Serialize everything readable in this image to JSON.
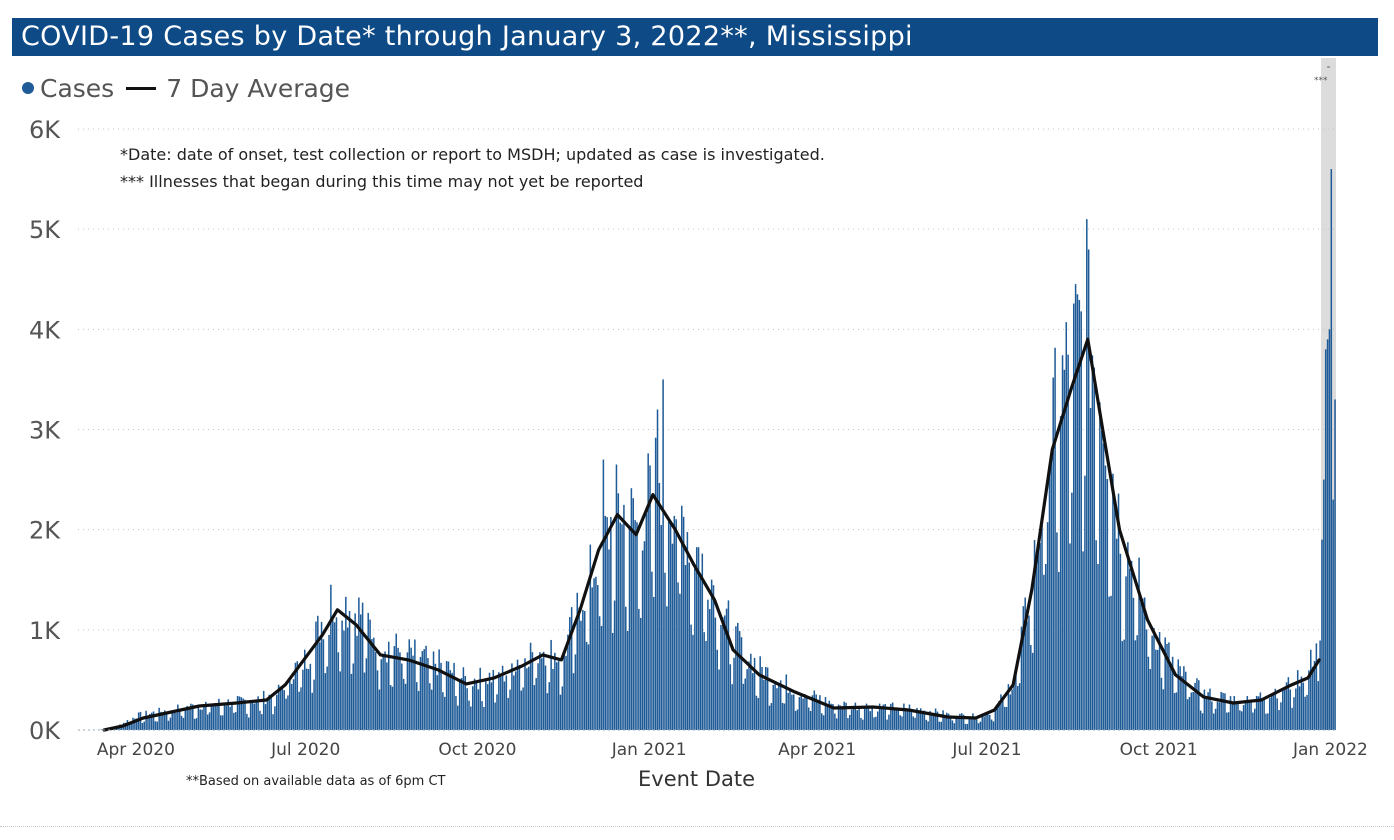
{
  "title": "COVID-19 Cases by Date* through January 3, 2022**, Mississippi",
  "legend": {
    "cases_label": "Cases",
    "average_label": "7 Day Average"
  },
  "notes": {
    "date_note": "*Date: date of onset, test collection or report to MSDH; updated as case is investigated.",
    "illness_note": "*** Illnesses that began during this time may not yet be reported",
    "footnote": "**Based on available data as of 6pm CT"
  },
  "shaded_region_label": "***",
  "colors": {
    "title_bar": "#0d4a86",
    "bars": "#1f5b97",
    "average_line": "#111111",
    "shaded_region": "#dcdcdc"
  },
  "chart_data": {
    "type": "bar",
    "title": "COVID-19 Cases by Date* through January 3, 2022**, Mississippi",
    "xlabel": "Event Date",
    "ylabel": "",
    "ylim": [
      0,
      6000
    ],
    "y_ticks": [
      {
        "value": 0,
        "label": "0K"
      },
      {
        "value": 1000,
        "label": "1K"
      },
      {
        "value": 2000,
        "label": "2K"
      },
      {
        "value": 3000,
        "label": "3K"
      },
      {
        "value": 4000,
        "label": "4K"
      },
      {
        "value": 5000,
        "label": "5K"
      },
      {
        "value": 6000,
        "label": "6K"
      }
    ],
    "x_range": [
      "2020-03-01",
      "2022-01-04"
    ],
    "x_ticks": [
      {
        "date": "2020-04-01",
        "label": "Apr 2020"
      },
      {
        "date": "2020-07-01",
        "label": "Jul 2020"
      },
      {
        "date": "2020-10-01",
        "label": "Oct 2020"
      },
      {
        "date": "2021-01-01",
        "label": "Jan 2021"
      },
      {
        "date": "2021-04-01",
        "label": "Apr 2021"
      },
      {
        "date": "2021-07-01",
        "label": "Jul 2021"
      },
      {
        "date": "2021-10-01",
        "label": "Oct 2021"
      },
      {
        "date": "2022-01-01",
        "label": "Jan 2022"
      }
    ],
    "grid": "horizontal dotted",
    "legend_position": "top-left",
    "shaded_region": {
      "start": "2021-12-27",
      "end": "2022-01-03"
    },
    "series": [
      {
        "name": "Cases",
        "type": "bar",
        "frequency": "daily",
        "anchors": [
          {
            "date": "2020-03-11",
            "value": 1
          },
          {
            "date": "2020-03-20",
            "value": 20
          },
          {
            "date": "2020-04-01",
            "value": 140
          },
          {
            "date": "2020-04-20",
            "value": 200
          },
          {
            "date": "2020-05-10",
            "value": 260
          },
          {
            "date": "2020-05-31",
            "value": 280
          },
          {
            "date": "2020-06-15",
            "value": 350
          },
          {
            "date": "2020-06-22",
            "value": 550
          },
          {
            "date": "2020-07-01",
            "value": 700
          },
          {
            "date": "2020-07-10",
            "value": 1100
          },
          {
            "date": "2020-07-20",
            "value": 1250
          },
          {
            "date": "2020-07-30",
            "value": 1150
          },
          {
            "date": "2020-08-10",
            "value": 850
          },
          {
            "date": "2020-08-25",
            "value": 750
          },
          {
            "date": "2020-09-10",
            "value": 650
          },
          {
            "date": "2020-09-25",
            "value": 480
          },
          {
            "date": "2020-10-15",
            "value": 550
          },
          {
            "date": "2020-10-25",
            "value": 750
          },
          {
            "date": "2020-11-05",
            "value": 800
          },
          {
            "date": "2020-11-15",
            "value": 700
          },
          {
            "date": "2020-11-25",
            "value": 1300
          },
          {
            "date": "2020-12-05",
            "value": 1700
          },
          {
            "date": "2020-12-15",
            "value": 2200
          },
          {
            "date": "2020-12-25",
            "value": 2000
          },
          {
            "date": "2021-01-05",
            "value": 2500
          },
          {
            "date": "2021-01-15",
            "value": 2200
          },
          {
            "date": "2021-01-25",
            "value": 1800
          },
          {
            "date": "2021-02-05",
            "value": 1400
          },
          {
            "date": "2021-02-15",
            "value": 900
          },
          {
            "date": "2021-03-01",
            "value": 600
          },
          {
            "date": "2021-03-20",
            "value": 400
          },
          {
            "date": "2021-04-10",
            "value": 250
          },
          {
            "date": "2021-05-01",
            "value": 230
          },
          {
            "date": "2021-05-20",
            "value": 220
          },
          {
            "date": "2021-06-10",
            "value": 150
          },
          {
            "date": "2021-06-25",
            "value": 130
          },
          {
            "date": "2021-07-05",
            "value": 200
          },
          {
            "date": "2021-07-15",
            "value": 500
          },
          {
            "date": "2021-07-25",
            "value": 1500
          },
          {
            "date": "2021-08-05",
            "value": 3000
          },
          {
            "date": "2021-08-15",
            "value": 3700
          },
          {
            "date": "2021-08-22",
            "value": 4000
          },
          {
            "date": "2021-08-30",
            "value": 3400
          },
          {
            "date": "2021-09-10",
            "value": 2000
          },
          {
            "date": "2021-09-25",
            "value": 1100
          },
          {
            "date": "2021-10-10",
            "value": 600
          },
          {
            "date": "2021-10-25",
            "value": 350
          },
          {
            "date": "2021-11-10",
            "value": 300
          },
          {
            "date": "2021-11-25",
            "value": 330
          },
          {
            "date": "2021-12-10",
            "value": 450
          },
          {
            "date": "2021-12-20",
            "value": 600
          },
          {
            "date": "2021-12-25",
            "value": 900
          },
          {
            "date": "2021-12-27",
            "value": 1900
          },
          {
            "date": "2021-12-28",
            "value": 2500
          },
          {
            "date": "2021-12-29",
            "value": 3800
          },
          {
            "date": "2021-12-30",
            "value": 3900
          },
          {
            "date": "2021-12-31",
            "value": 4000
          },
          {
            "date": "2022-01-01",
            "value": 5600
          },
          {
            "date": "2022-01-02",
            "value": 2300
          },
          {
            "date": "2022-01-03",
            "value": 3300
          }
        ],
        "peaks": [
          {
            "date": "2020-07-14",
            "value": 1450
          },
          {
            "date": "2020-12-07",
            "value": 2700
          },
          {
            "date": "2021-01-05",
            "value": 3200
          },
          {
            "date": "2021-01-08",
            "value": 3500
          },
          {
            "date": "2021-08-23",
            "value": 5100
          },
          {
            "date": "2022-01-01",
            "value": 5600
          }
        ]
      },
      {
        "name": "7 Day Average",
        "type": "line",
        "end": "2021-12-26",
        "points": [
          {
            "date": "2020-03-15",
            "value": 0
          },
          {
            "date": "2020-03-25",
            "value": 40
          },
          {
            "date": "2020-04-05",
            "value": 120
          },
          {
            "date": "2020-04-20",
            "value": 180
          },
          {
            "date": "2020-05-05",
            "value": 240
          },
          {
            "date": "2020-05-25",
            "value": 270
          },
          {
            "date": "2020-06-10",
            "value": 300
          },
          {
            "date": "2020-06-20",
            "value": 450
          },
          {
            "date": "2020-06-30",
            "value": 700
          },
          {
            "date": "2020-07-10",
            "value": 950
          },
          {
            "date": "2020-07-18",
            "value": 1200
          },
          {
            "date": "2020-07-28",
            "value": 1050
          },
          {
            "date": "2020-08-10",
            "value": 750
          },
          {
            "date": "2020-08-25",
            "value": 700
          },
          {
            "date": "2020-09-10",
            "value": 600
          },
          {
            "date": "2020-09-25",
            "value": 460
          },
          {
            "date": "2020-10-10",
            "value": 520
          },
          {
            "date": "2020-10-25",
            "value": 640
          },
          {
            "date": "2020-11-05",
            "value": 750
          },
          {
            "date": "2020-11-15",
            "value": 700
          },
          {
            "date": "2020-11-25",
            "value": 1200
          },
          {
            "date": "2020-12-05",
            "value": 1800
          },
          {
            "date": "2020-12-15",
            "value": 2150
          },
          {
            "date": "2020-12-25",
            "value": 1950
          },
          {
            "date": "2021-01-03",
            "value": 2350
          },
          {
            "date": "2021-01-15",
            "value": 2000
          },
          {
            "date": "2021-01-25",
            "value": 1650
          },
          {
            "date": "2021-02-05",
            "value": 1300
          },
          {
            "date": "2021-02-15",
            "value": 800
          },
          {
            "date": "2021-03-01",
            "value": 550
          },
          {
            "date": "2021-03-20",
            "value": 380
          },
          {
            "date": "2021-04-10",
            "value": 220
          },
          {
            "date": "2021-05-01",
            "value": 230
          },
          {
            "date": "2021-05-20",
            "value": 200
          },
          {
            "date": "2021-06-10",
            "value": 130
          },
          {
            "date": "2021-06-25",
            "value": 120
          },
          {
            "date": "2021-07-05",
            "value": 200
          },
          {
            "date": "2021-07-15",
            "value": 450
          },
          {
            "date": "2021-07-25",
            "value": 1400
          },
          {
            "date": "2021-08-05",
            "value": 2800
          },
          {
            "date": "2021-08-15",
            "value": 3400
          },
          {
            "date": "2021-08-24",
            "value": 3900
          },
          {
            "date": "2021-09-01",
            "value": 3000
          },
          {
            "date": "2021-09-10",
            "value": 2000
          },
          {
            "date": "2021-09-25",
            "value": 1100
          },
          {
            "date": "2021-10-10",
            "value": 550
          },
          {
            "date": "2021-10-25",
            "value": 330
          },
          {
            "date": "2021-11-10",
            "value": 270
          },
          {
            "date": "2021-11-25",
            "value": 300
          },
          {
            "date": "2021-12-10",
            "value": 440
          },
          {
            "date": "2021-12-20",
            "value": 520
          },
          {
            "date": "2021-12-26",
            "value": 700
          }
        ]
      }
    ]
  }
}
